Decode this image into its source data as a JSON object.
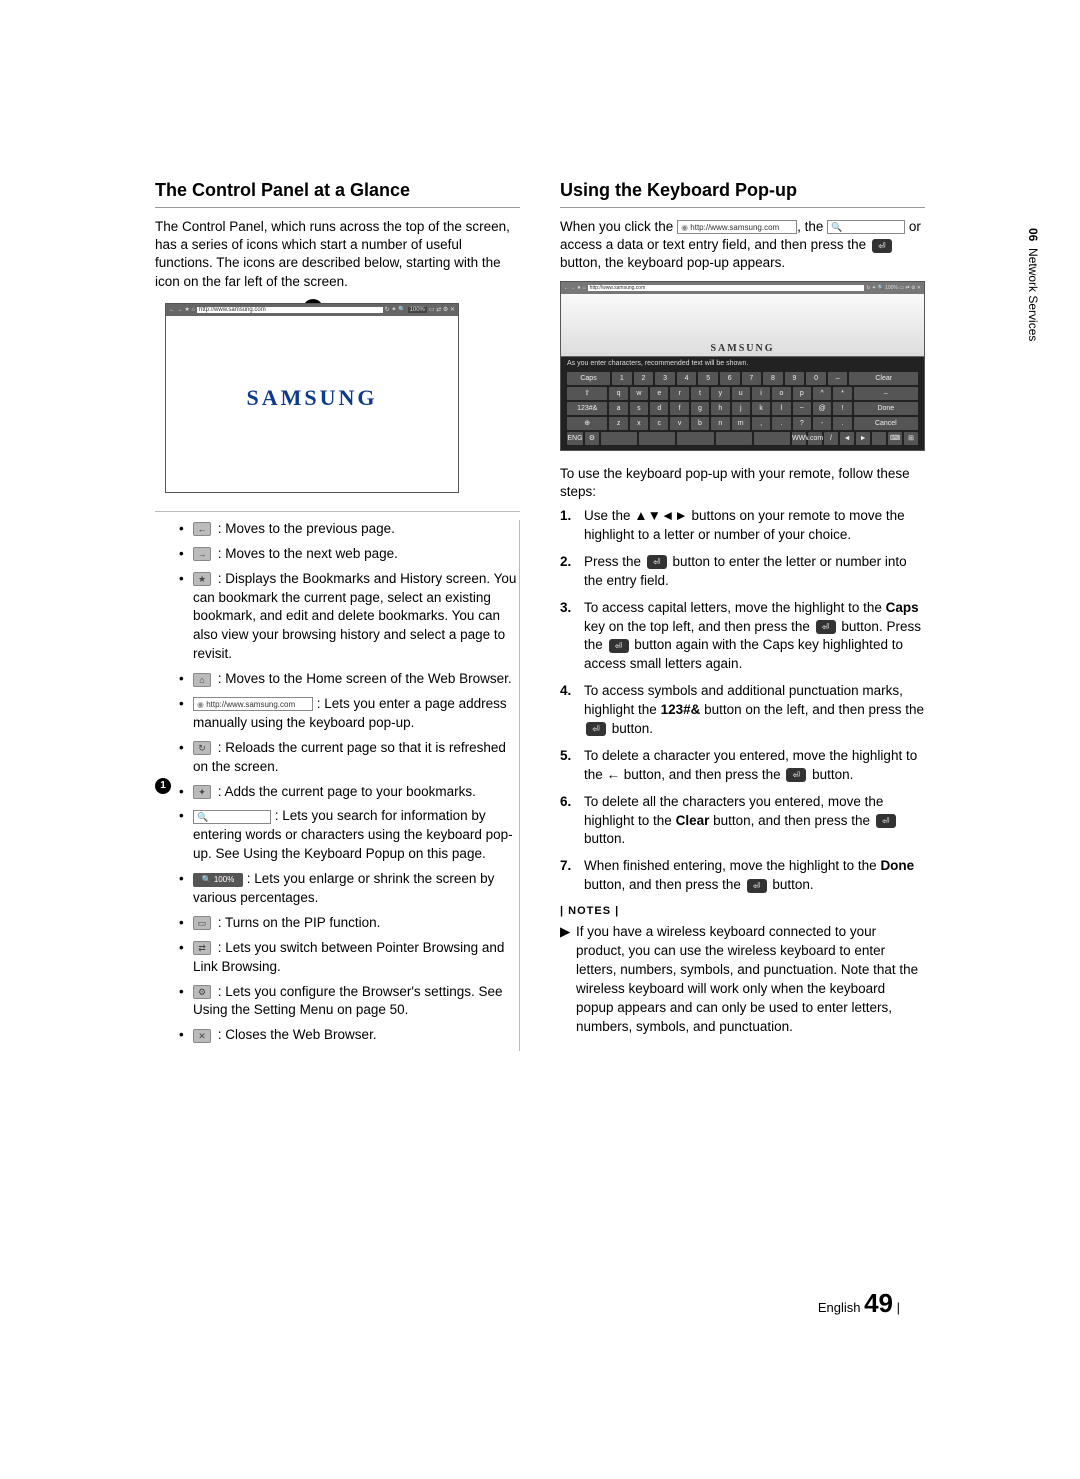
{
  "sideLabel": {
    "chapter": "06",
    "title": "Network Services"
  },
  "pageFooter": {
    "lang": "English",
    "num": "49"
  },
  "left": {
    "title": "The Control Panel at a Glance",
    "intro": "The Control Panel, which runs across the top of the screen, has a series of icons which start a number of useful functions. The icons are described below, starting with the icon on the far left of the screen.",
    "browserUrl": "http://www.samsung.com",
    "brand": "SAMSUNG",
    "calloutNum": "1",
    "icons": [
      {
        "glyph": "←",
        "text": " : Moves to the previous page."
      },
      {
        "glyph": "→",
        "text": " : Moves to the next web page."
      },
      {
        "glyph": "★",
        "text": " : Displays the Bookmarks and History screen. You can bookmark the current page, select an existing bookmark, and edit and delete bookmarks. You can also view your browsing history and select a page to revisit."
      },
      {
        "glyph": "⌂",
        "text": " : Moves to the Home screen of the Web Browser."
      },
      {
        "type": "url",
        "url": "http://www.samsung.com",
        "text": " : Lets you enter a page address manually using the keyboard pop-up."
      },
      {
        "glyph": "↻",
        "text": " : Reloads the current page so that it is refreshed on the screen."
      },
      {
        "glyph": "✦",
        "text": " : Adds the current page to your bookmarks."
      },
      {
        "type": "search",
        "placeholder": "🔍",
        "text": " : Lets you search for information by entering words or characters using the keyboard pop-up. See Using the Keyboard Popup on this page."
      },
      {
        "type": "zoom",
        "label": "🔍 100%",
        "text": " : Lets you enlarge or shrink the screen by various percentages."
      },
      {
        "glyph": "▭",
        "text": " : Turns on the PIP function."
      },
      {
        "glyph": "⇄",
        "text": " : Lets you switch between Pointer Browsing and Link Browsing."
      },
      {
        "glyph": "⚙",
        "text": " : Lets you configure the Browser's settings. See Using the Setting Menu on page 50."
      },
      {
        "glyph": "✕",
        "text": " : Closes the Web Browser."
      }
    ]
  },
  "right": {
    "title": "Using the Keyboard Pop-up",
    "intro1": "When you click the ",
    "intro1b": ", the ",
    "intro2": " or access a data or text entry field, and then press the ",
    "intro2b": " button, the keyboard pop-up appears.",
    "url": "http://www.samsung.com",
    "enterGlyph": "⏎",
    "kbdHint": "As you enter characters, recommended text will be shown.",
    "kbdBrand": "SAMSUNG",
    "kbdRows": [
      [
        "Caps",
        "1",
        "2",
        "3",
        "4",
        "5",
        "6",
        "7",
        "8",
        "9",
        "0",
        "–",
        "Clear"
      ],
      [
        "⇧",
        "q",
        "w",
        "e",
        "r",
        "t",
        "y",
        "u",
        "i",
        "o",
        "p",
        "^",
        "*",
        "–"
      ],
      [
        "123#&",
        "a",
        "s",
        "d",
        "f",
        "g",
        "h",
        "j",
        "k",
        "l",
        "~",
        "@",
        "!",
        "Done"
      ],
      [
        "⊕",
        "z",
        "x",
        "c",
        "v",
        "b",
        "n",
        "m",
        ",",
        ".",
        "?",
        "-",
        ".",
        "Cancel"
      ],
      [
        "ENG",
        "⚙",
        "",
        "",
        "",
        "",
        "",
        "WWW.",
        ".com",
        "/",
        "◄",
        "►",
        "",
        "⌨",
        "⊞"
      ]
    ],
    "steps_intro": "To use the keyboard pop-up with your remote, follow these steps:",
    "steps": [
      {
        "n": "1.",
        "pre": "Use the ",
        "arrows": "▲▼◄►",
        "post": " buttons on your remote to move the highlight to a letter or number of your choice."
      },
      {
        "n": "2.",
        "pre": "Press the ",
        "icon": "⏎",
        "post": " button to enter the letter or number into the entry field."
      },
      {
        "n": "3.",
        "text": "To access capital letters, move the highlight to the Caps key on the top left, and then press the ⏎ button. Press the ⏎ button again with the Caps key highlighted to access small letters again.",
        "bold1": "Caps"
      },
      {
        "n": "4.",
        "text": "To access symbols and additional punctuation marks, highlight the 123#& button on the left, and then press the ⏎ button.",
        "bold1": "123#&"
      },
      {
        "n": "5.",
        "text": "To delete a character you entered, move the highlight to the ← button, and then press the ⏎ button."
      },
      {
        "n": "6.",
        "text": "To delete all the characters you entered, move the highlight to the Clear button, and then press the ⏎ button.",
        "bold1": "Clear"
      },
      {
        "n": "7.",
        "text": "When finished entering, move the highlight to the Done button, and then press the ⏎ button.",
        "bold1": "Done"
      }
    ],
    "notesLabel": "| NOTES |",
    "note": "If you have a wireless keyboard connected to your product, you can use the wireless keyboard to enter letters, numbers, symbols, and punctuation. Note that the wireless keyboard will work only when the keyboard popup appears and can only be used to enter letters, numbers, symbols, and punctuation."
  }
}
